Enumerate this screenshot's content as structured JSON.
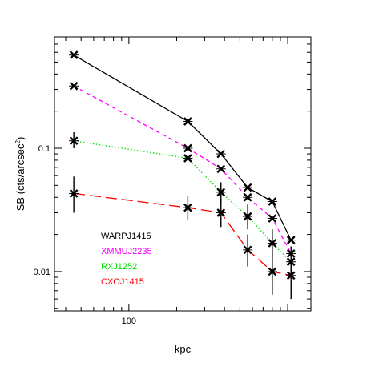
{
  "chart_data": {
    "type": "line",
    "xlabel": "kpc",
    "ylabel_main": "SB (cts/arcsec",
    "ylabel_sup": "2",
    "ylabel_close": ")",
    "x_scale": "log",
    "y_scale": "log",
    "xlim": [
      34,
      1400
    ],
    "ylim": [
      0.0048,
      0.8
    ],
    "x_ticks": [
      100
    ],
    "x_tick_labels": [
      "100"
    ],
    "y_ticks": [
      0.01,
      0.1
    ],
    "y_tick_labels": [
      "0.01",
      "0.1"
    ],
    "grid": false,
    "legend_position": "bottom-left",
    "series": [
      {
        "name": "WARPJ1415",
        "color": "#000000",
        "dash": "solid",
        "points": [
          {
            "x": 45,
            "y": 0.57,
            "ylo": 0.57,
            "yhi": 0.57
          },
          {
            "x": 235,
            "y": 0.165,
            "ylo": 0.165,
            "yhi": 0.165
          },
          {
            "x": 380,
            "y": 0.09,
            "ylo": 0.09,
            "yhi": 0.09
          },
          {
            "x": 560,
            "y": 0.048,
            "ylo": 0.048,
            "yhi": 0.048
          },
          {
            "x": 800,
            "y": 0.037,
            "ylo": 0.037,
            "yhi": 0.037
          },
          {
            "x": 1050,
            "y": 0.018,
            "ylo": 0.018,
            "yhi": 0.018
          }
        ]
      },
      {
        "name": "XMMUJ2235",
        "color": "#ff00ff",
        "dash": "short-dash",
        "points": [
          {
            "x": 45,
            "y": 0.32,
            "ylo": 0.32,
            "yhi": 0.32
          },
          {
            "x": 235,
            "y": 0.1,
            "ylo": 0.1,
            "yhi": 0.1
          },
          {
            "x": 380,
            "y": 0.068,
            "ylo": 0.068,
            "yhi": 0.068
          },
          {
            "x": 560,
            "y": 0.04,
            "ylo": 0.04,
            "yhi": 0.04
          },
          {
            "x": 800,
            "y": 0.027,
            "ylo": 0.027,
            "yhi": 0.027
          },
          {
            "x": 1050,
            "y": 0.014,
            "ylo": 0.014,
            "yhi": 0.014
          }
        ]
      },
      {
        "name": "RXJ1252",
        "color": "#00dd00",
        "dash": "dotted",
        "points": [
          {
            "x": 45,
            "y": 0.115,
            "ylo": 0.1,
            "yhi": 0.135
          },
          {
            "x": 235,
            "y": 0.083,
            "ylo": 0.083,
            "yhi": 0.083
          },
          {
            "x": 380,
            "y": 0.044,
            "ylo": 0.036,
            "yhi": 0.053
          },
          {
            "x": 560,
            "y": 0.028,
            "ylo": 0.022,
            "yhi": 0.035
          },
          {
            "x": 800,
            "y": 0.017,
            "ylo": 0.013,
            "yhi": 0.022
          },
          {
            "x": 1050,
            "y": 0.012,
            "ylo": 0.009,
            "yhi": 0.016
          }
        ]
      },
      {
        "name": "CXOJ1415",
        "color": "#ff0000",
        "dash": "long-dash",
        "points": [
          {
            "x": 45,
            "y": 0.043,
            "ylo": 0.03,
            "yhi": 0.059
          },
          {
            "x": 235,
            "y": 0.033,
            "ylo": 0.026,
            "yhi": 0.041
          },
          {
            "x": 380,
            "y": 0.03,
            "ylo": 0.023,
            "yhi": 0.039
          },
          {
            "x": 560,
            "y": 0.015,
            "ylo": 0.011,
            "yhi": 0.02
          },
          {
            "x": 800,
            "y": 0.01,
            "ylo": 0.0065,
            "yhi": 0.015
          },
          {
            "x": 1050,
            "y": 0.0093,
            "ylo": 0.006,
            "yhi": 0.013
          }
        ]
      }
    ]
  }
}
